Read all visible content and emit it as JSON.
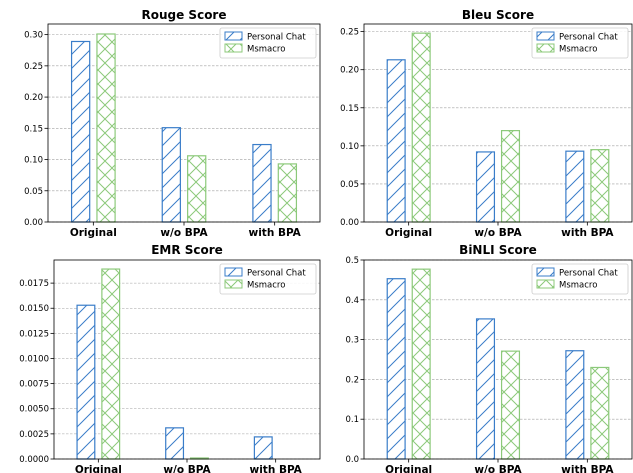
{
  "colors": {
    "personal": "#3a7dc9",
    "msmacro": "#8cc97a"
  },
  "chart_data": [
    {
      "type": "bar",
      "title": "Rouge Score",
      "categories": [
        "Original",
        "w/o BPA",
        "with BPA"
      ],
      "series": [
        {
          "name": "Personal Chat",
          "values": [
            0.289,
            0.151,
            0.124
          ]
        },
        {
          "name": "Msmacro",
          "values": [
            0.301,
            0.106,
            0.093
          ]
        }
      ],
      "ylim": [
        0,
        0.317
      ],
      "yticks": [
        0.0,
        0.05,
        0.1,
        0.15,
        0.2,
        0.25,
        0.3
      ],
      "ytick_labels": [
        "0.00",
        "0.05",
        "0.10",
        "0.15",
        "0.20",
        "0.25",
        "0.30"
      ],
      "legend_position": "top-right",
      "grid": "y-dashed"
    },
    {
      "type": "bar",
      "title": "Bleu Score",
      "categories": [
        "Original",
        "w/o BPA",
        "with BPA"
      ],
      "series": [
        {
          "name": "Personal Chat",
          "values": [
            0.213,
            0.092,
            0.093
          ]
        },
        {
          "name": "Msmacro",
          "values": [
            0.248,
            0.12,
            0.095
          ]
        }
      ],
      "ylim": [
        0,
        0.26
      ],
      "yticks": [
        0.0,
        0.05,
        0.1,
        0.15,
        0.2,
        0.25
      ],
      "ytick_labels": [
        "0.00",
        "0.05",
        "0.10",
        "0.15",
        "0.20",
        "0.25"
      ],
      "legend_position": "top-right",
      "grid": "y-dashed"
    },
    {
      "type": "bar",
      "title": "EMR Score",
      "categories": [
        "Original",
        "w/o BPA",
        "with BPA"
      ],
      "series": [
        {
          "name": "Personal Chat",
          "values": [
            0.0153,
            0.0031,
            0.0022
          ]
        },
        {
          "name": "Msmacro",
          "values": [
            0.0189,
            0.0001,
            0.0
          ]
        }
      ],
      "ylim": [
        0,
        0.0198
      ],
      "yticks": [
        0.0,
        0.0025,
        0.005,
        0.0075,
        0.01,
        0.0125,
        0.015,
        0.0175
      ],
      "ytick_labels": [
        "0.0000",
        "0.0025",
        "0.0050",
        "0.0075",
        "0.0100",
        "0.0125",
        "0.0150",
        "0.0175"
      ],
      "legend_position": "top-right",
      "grid": "y-dashed"
    },
    {
      "type": "bar",
      "title": "BiNLI Score",
      "categories": [
        "Original",
        "w/o BPA",
        "with BPA"
      ],
      "series": [
        {
          "name": "Personal Chat",
          "values": [
            0.453,
            0.352,
            0.272
          ]
        },
        {
          "name": "Msmacro",
          "values": [
            0.477,
            0.271,
            0.23
          ]
        }
      ],
      "ylim": [
        0,
        0.5
      ],
      "yticks": [
        0.0,
        0.1,
        0.2,
        0.3,
        0.4,
        0.5
      ],
      "ytick_labels": [
        "0.0",
        "0.1",
        "0.2",
        "0.3",
        "0.4",
        "0.5"
      ],
      "legend_position": "top-right",
      "grid": "y-dashed"
    }
  ]
}
